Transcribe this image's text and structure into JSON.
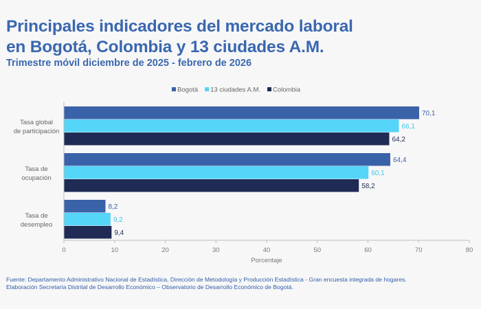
{
  "header": {
    "title_line1": "Principales indicadores del mercado laboral",
    "title_line2": "en Bogotá, Colombia y 13 ciudades A.M.",
    "subtitle": "Trimestre móvil diciembre de 2025 - febrero de 2026"
  },
  "footer": {
    "source_line1": "Fuente: Departamento Administrativo Nacional de Estadística, Dirección de Metodología y Producción Estadística - Gran encuesta integrada de hogares.",
    "source_line2": "Elaboración Secretaría Distrital de Desarrollo Económico – Observatorio de Desarrollo Económico de Bogotá."
  },
  "chart_data": {
    "type": "bar",
    "orientation": "horizontal",
    "categories": [
      [
        "Tasa global",
        "de participación"
      ],
      [
        "Tasa de",
        "ocupación"
      ],
      [
        "Tasa de",
        "desempleo"
      ]
    ],
    "series": [
      {
        "name": "Bogotá",
        "values": [
          70.1,
          64.4,
          8.2
        ],
        "labels": [
          "70,1",
          "64,4",
          "8,2"
        ],
        "color": "#3a62a8",
        "label_color": "#3a62a8"
      },
      {
        "name": "13 ciudades A.M.",
        "values": [
          66.1,
          60.1,
          9.2
        ],
        "labels": [
          "66,1",
          "60,1",
          "9,2"
        ],
        "color": "#55d5f8",
        "label_color": "#3cc4ef"
      },
      {
        "name": "Colombia",
        "values": [
          64.2,
          58.2,
          9.4
        ],
        "labels": [
          "64,2",
          "58,2",
          "9,4"
        ],
        "color": "#1f2b54",
        "label_color": "#1f2b54"
      }
    ],
    "xlabel": "Porcentaje",
    "xlim": [
      0,
      80
    ],
    "xticks": [
      "0",
      "10",
      "20",
      "30",
      "40",
      "50",
      "60",
      "70",
      "80"
    ],
    "legend_position": "top-right",
    "grid": false
  }
}
